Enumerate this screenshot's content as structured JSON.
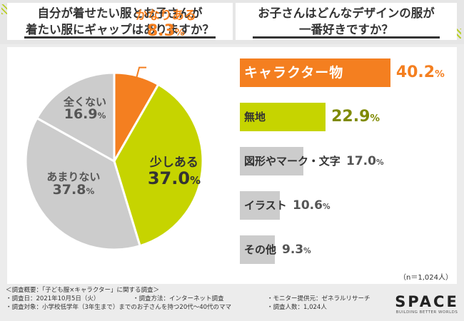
{
  "header": {
    "left_title": "自分が着せたい服とお子さんが\n着たい服にギャップはありますか？",
    "right_title": "お子さんはどんなデザインの服が\n一番好きですか？"
  },
  "colors": {
    "orange": "#f47f20",
    "lime": "#c6d400",
    "gray": "#cccccc",
    "dark": "#333333",
    "background": "#ececec"
  },
  "chart_data": [
    {
      "type": "pie",
      "title": "自分が着せたい服とお子さんが着たい服にギャップはありますか？",
      "slices": [
        {
          "label": "かなりある",
          "value": 8.3,
          "display": "8.3",
          "color": "#f47f20"
        },
        {
          "label": "少しある",
          "value": 37.0,
          "display": "37.0",
          "color": "#c6d400"
        },
        {
          "label": "あまりない",
          "value": 37.8,
          "display": "37.8",
          "color": "#cccccc"
        },
        {
          "label": "全くない",
          "value": 16.9,
          "display": "16.9",
          "color": "#cccccc"
        }
      ],
      "unit": "%"
    },
    {
      "type": "bar",
      "orientation": "horizontal",
      "title": "お子さんはどんなデザインの服が一番好きですか？",
      "categories": [
        "キャラクター物",
        "無地",
        "図形やマーク・文字",
        "イラスト",
        "その他"
      ],
      "values": [
        40.2,
        22.9,
        17.0,
        10.6,
        9.3
      ],
      "display": [
        "40.2",
        "22.9",
        "17.0",
        "10.6",
        "9.3"
      ],
      "unit": "%"
    }
  ],
  "sample_size": "（n＝1,024人）",
  "footer": {
    "summary": "＜調査概要：「子ども服×キャラクター」に関する調査＞",
    "date": "・調査日：2021年10月5日（火）",
    "method": "・調査方法：インターネット調査",
    "provider": "・モニター提供元：ゼネラルリサーチ",
    "target": "・調査対象：小学校低学年（3年生まで）までのお子さんを持つ20代〜40代のママ",
    "count": "・調査人数：1,024人"
  },
  "logo": {
    "main": "SPACE",
    "sub": "BUILDING BETTER WORLDS"
  }
}
